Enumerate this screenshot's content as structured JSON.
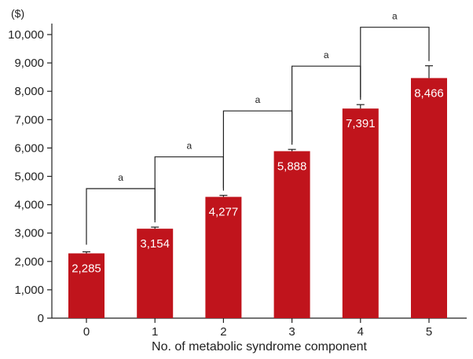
{
  "chart_data": {
    "type": "bar",
    "categories": [
      "0",
      "1",
      "2",
      "3",
      "4",
      "5"
    ],
    "values": [
      2285,
      3154,
      4277,
      5888,
      7391,
      8466
    ],
    "data_labels": [
      "2,285",
      "3,154",
      "4,277",
      "5,888",
      "7,391",
      "8,466"
    ],
    "error_upper": [
      2340,
      3210,
      4330,
      5950,
      7530,
      8900
    ],
    "y_unit": "($)",
    "xlabel": "No. of metabolic syndrome component",
    "ylabel": "",
    "ylim": [
      0,
      10000
    ],
    "yticks": [
      0,
      1000,
      2000,
      3000,
      4000,
      5000,
      6000,
      7000,
      8000,
      9000,
      10000
    ],
    "ytick_labels": [
      "0",
      "1,000",
      "2,000",
      "3,000",
      "4,000",
      "5,000",
      "6,000",
      "7,000",
      "8,000",
      "9,000",
      "10,000"
    ],
    "significance": [
      {
        "from": 0,
        "to": 1,
        "label": "a"
      },
      {
        "from": 1,
        "to": 2,
        "label": "a"
      },
      {
        "from": 2,
        "to": 3,
        "label": "a"
      },
      {
        "from": 3,
        "to": 4,
        "label": "a"
      },
      {
        "from": 4,
        "to": 5,
        "label": "a"
      }
    ],
    "bar_color": "#c0141c",
    "grid": false,
    "legend": "none"
  }
}
